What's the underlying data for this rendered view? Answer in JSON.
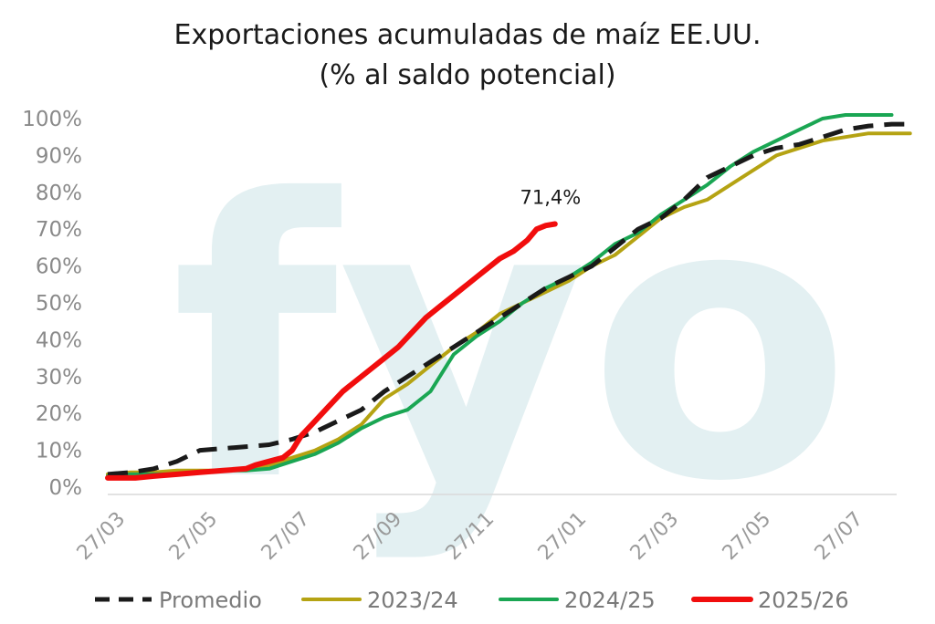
{
  "chart_data": {
    "type": "line",
    "title": "Exportaciones acumuladas de maíz EE.UU.",
    "subtitle": "(% al saldo potencial)",
    "watermark": "fyo",
    "watermark_color": "#e3f0f2",
    "ylim": [
      0,
      100
    ],
    "y_ticks": [
      "0%",
      "10%",
      "20%",
      "30%",
      "40%",
      "50%",
      "60%",
      "70%",
      "80%",
      "90%",
      "100%"
    ],
    "x_ticks": [
      "27/03",
      "27/05",
      "27/07",
      "27/09",
      "27/11",
      "27/01",
      "27/03",
      "27/05",
      "27/07"
    ],
    "xlabel": "",
    "ylabel": "",
    "grid": false,
    "legend_position": "bottom",
    "annotation": {
      "text": "71,4%",
      "series": "2025/26"
    },
    "series": [
      {
        "name": "Promedio",
        "color": "#1a1a1a",
        "dash": true,
        "points": [
          [
            0,
            3.5
          ],
          [
            0.25,
            4
          ],
          [
            0.5,
            5
          ],
          [
            0.75,
            7
          ],
          [
            1,
            10
          ],
          [
            1.25,
            10.5
          ],
          [
            1.5,
            11
          ],
          [
            1.75,
            11.5
          ],
          [
            2,
            13
          ],
          [
            2.25,
            15
          ],
          [
            2.5,
            18
          ],
          [
            2.75,
            21
          ],
          [
            3,
            26
          ],
          [
            3.25,
            30
          ],
          [
            3.5,
            34
          ],
          [
            3.75,
            38
          ],
          [
            4,
            42
          ],
          [
            4.25,
            46
          ],
          [
            4.5,
            50
          ],
          [
            4.75,
            54
          ],
          [
            5,
            57
          ],
          [
            5.25,
            60
          ],
          [
            5.5,
            65
          ],
          [
            5.75,
            70
          ],
          [
            6,
            73
          ],
          [
            6.25,
            78
          ],
          [
            6.5,
            84
          ],
          [
            6.75,
            87
          ],
          [
            7,
            90
          ],
          [
            7.25,
            92
          ],
          [
            7.5,
            93
          ],
          [
            7.75,
            95
          ],
          [
            8,
            97
          ],
          [
            8.25,
            98
          ],
          [
            8.5,
            98.5
          ],
          [
            8.7,
            98.5
          ]
        ]
      },
      {
        "name": "2023/24",
        "color": "#b5a313",
        "dash": false,
        "points": [
          [
            0,
            3.5
          ],
          [
            0.25,
            4
          ],
          [
            0.5,
            4
          ],
          [
            0.75,
            4.5
          ],
          [
            1,
            4.5
          ],
          [
            1.25,
            4.5
          ],
          [
            1.5,
            5
          ],
          [
            1.75,
            6
          ],
          [
            2,
            8
          ],
          [
            2.25,
            10
          ],
          [
            2.5,
            13
          ],
          [
            2.75,
            17
          ],
          [
            3,
            24
          ],
          [
            3.25,
            28
          ],
          [
            3.5,
            33
          ],
          [
            3.75,
            38
          ],
          [
            4,
            42
          ],
          [
            4.25,
            47
          ],
          [
            4.5,
            50
          ],
          [
            4.75,
            53
          ],
          [
            5,
            56
          ],
          [
            5.25,
            60
          ],
          [
            5.5,
            63
          ],
          [
            5.75,
            68
          ],
          [
            6,
            73
          ],
          [
            6.25,
            76
          ],
          [
            6.5,
            78
          ],
          [
            6.75,
            82
          ],
          [
            7,
            86
          ],
          [
            7.25,
            90
          ],
          [
            7.5,
            92
          ],
          [
            7.75,
            94
          ],
          [
            8,
            95
          ],
          [
            8.25,
            96
          ],
          [
            8.5,
            96
          ],
          [
            8.7,
            96
          ]
        ]
      },
      {
        "name": "2024/25",
        "color": "#1aa653",
        "dash": false,
        "points": [
          [
            0,
            3
          ],
          [
            0.25,
            3.5
          ],
          [
            0.5,
            3.5
          ],
          [
            0.75,
            3.5
          ],
          [
            1,
            4
          ],
          [
            1.25,
            4.5
          ],
          [
            1.5,
            4.5
          ],
          [
            1.75,
            5
          ],
          [
            2,
            7
          ],
          [
            2.25,
            9
          ],
          [
            2.5,
            12
          ],
          [
            2.75,
            16
          ],
          [
            3,
            19
          ],
          [
            3.25,
            21
          ],
          [
            3.5,
            26
          ],
          [
            3.75,
            36
          ],
          [
            4,
            41
          ],
          [
            4.25,
            45
          ],
          [
            4.5,
            50
          ],
          [
            4.75,
            54
          ],
          [
            5,
            57
          ],
          [
            5.25,
            61
          ],
          [
            5.5,
            66
          ],
          [
            5.75,
            69
          ],
          [
            6,
            74
          ],
          [
            6.25,
            78
          ],
          [
            6.5,
            82
          ],
          [
            6.75,
            87
          ],
          [
            7,
            91
          ],
          [
            7.25,
            94
          ],
          [
            7.5,
            97
          ],
          [
            7.75,
            100
          ],
          [
            8,
            101
          ],
          [
            8.25,
            101
          ],
          [
            8.5,
            101
          ]
        ]
      },
      {
        "name": "2025/26",
        "color": "#f10d0d",
        "dash": false,
        "points": [
          [
            0,
            2.5
          ],
          [
            0.15,
            2.5
          ],
          [
            0.3,
            2.5
          ],
          [
            0.5,
            3
          ],
          [
            0.75,
            3.5
          ],
          [
            1,
            4
          ],
          [
            1.25,
            4.5
          ],
          [
            1.5,
            5
          ],
          [
            1.6,
            6
          ],
          [
            1.75,
            7
          ],
          [
            1.9,
            8
          ],
          [
            2,
            10
          ],
          [
            2.1,
            14
          ],
          [
            2.25,
            18
          ],
          [
            2.4,
            22
          ],
          [
            2.55,
            26
          ],
          [
            2.7,
            29
          ],
          [
            2.85,
            32
          ],
          [
            3,
            35
          ],
          [
            3.15,
            38
          ],
          [
            3.3,
            42
          ],
          [
            3.45,
            46
          ],
          [
            3.6,
            49
          ],
          [
            3.75,
            52
          ],
          [
            3.9,
            55
          ],
          [
            4,
            57
          ],
          [
            4.1,
            59
          ],
          [
            4.25,
            62
          ],
          [
            4.4,
            64
          ],
          [
            4.55,
            67
          ],
          [
            4.65,
            70
          ],
          [
            4.75,
            71
          ],
          [
            4.85,
            71.4
          ]
        ]
      }
    ]
  }
}
